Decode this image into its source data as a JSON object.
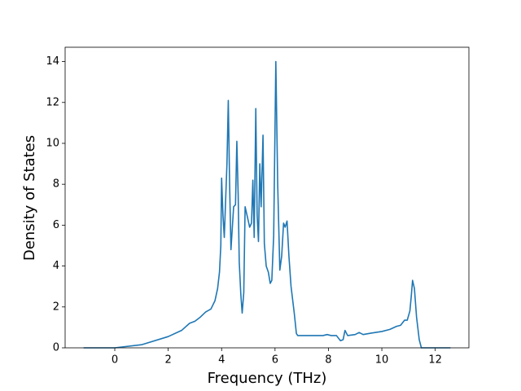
{
  "chart_data": {
    "type": "line",
    "xlabel": "Frequency (THz)",
    "ylabel": "Density of States",
    "x": [
      -1.17,
      0,
      1,
      2,
      2.5,
      2.8,
      3.0,
      3.2,
      3.4,
      3.6,
      3.75,
      3.85,
      3.92,
      3.97,
      4.0,
      4.05,
      4.1,
      4.2,
      4.25,
      4.3,
      4.35,
      4.45,
      4.52,
      4.57,
      4.62,
      4.66,
      4.72,
      4.77,
      4.83,
      4.88,
      5.0,
      5.05,
      5.12,
      5.17,
      5.22,
      5.28,
      5.33,
      5.38,
      5.43,
      5.48,
      5.55,
      5.6,
      5.67,
      5.75,
      5.82,
      5.88,
      5.95,
      6.03,
      6.1,
      6.18,
      6.25,
      6.32,
      6.38,
      6.45,
      6.52,
      6.6,
      6.72,
      6.8,
      6.85,
      7.5,
      7.8,
      7.95,
      8.1,
      8.3,
      8.45,
      8.55,
      8.62,
      8.72,
      9.0,
      9.15,
      9.3,
      9.6,
      10.0,
      10.3,
      10.55,
      10.7,
      10.85,
      10.95,
      11.05,
      11.1,
      11.15,
      11.22,
      11.3,
      11.4,
      11.48,
      12.57
    ],
    "values": [
      0,
      0,
      0.15,
      0.55,
      0.85,
      1.2,
      1.3,
      1.5,
      1.75,
      1.9,
      2.3,
      2.9,
      3.7,
      5.0,
      8.3,
      6.5,
      5.4,
      9.0,
      12.1,
      8.0,
      4.8,
      6.9,
      7.0,
      10.1,
      7.5,
      4.2,
      2.6,
      1.7,
      2.7,
      6.9,
      6.2,
      5.9,
      6.1,
      8.2,
      5.4,
      11.7,
      6.5,
      5.2,
      9.0,
      6.9,
      10.4,
      5.1,
      4.0,
      3.7,
      3.15,
      3.3,
      5.5,
      14.0,
      8.0,
      3.8,
      4.5,
      6.1,
      5.9,
      6.2,
      4.5,
      3.0,
      1.7,
      0.7,
      0.6,
      0.6,
      0.6,
      0.65,
      0.6,
      0.6,
      0.35,
      0.4,
      0.85,
      0.6,
      0.65,
      0.75,
      0.65,
      0.72,
      0.8,
      0.9,
      1.05,
      1.1,
      1.35,
      1.35,
      1.8,
      2.5,
      3.3,
      2.9,
      1.5,
      0.4,
      0,
      0
    ],
    "color": "#1f77b4",
    "xlim": [
      -1.86,
      13.26
    ],
    "xticks": [
      0,
      2,
      4,
      6,
      8,
      10,
      12
    ],
    "ylim": [
      0,
      14.7
    ],
    "yticks": [
      0,
      2,
      4,
      6,
      8,
      10,
      12,
      14
    ]
  }
}
